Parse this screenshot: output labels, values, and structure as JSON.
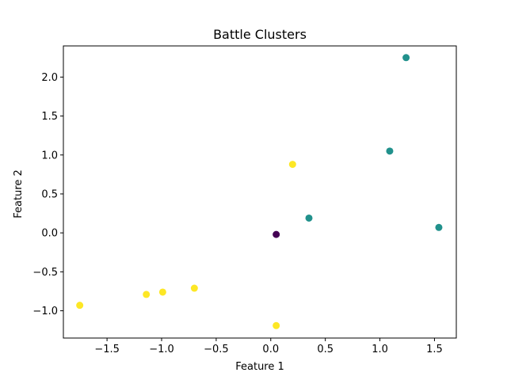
{
  "chart_data": {
    "type": "scatter",
    "title": "Battle Clusters",
    "xlabel": "Feature 1",
    "ylabel": "Feature 2",
    "xlim": [
      -1.9,
      1.7
    ],
    "ylim": [
      -1.35,
      2.4
    ],
    "xticks": [
      -1.5,
      -1.0,
      -0.5,
      0.0,
      0.5,
      1.0,
      1.5
    ],
    "xtick_labels": [
      "−1.5",
      "−1.0",
      "−0.5",
      "0.0",
      "0.5",
      "1.0",
      "1.5"
    ],
    "yticks": [
      -1.0,
      -0.5,
      0.0,
      0.5,
      1.0,
      1.5,
      2.0
    ],
    "ytick_labels": [
      "−1.0",
      "−0.5",
      "0.0",
      "0.5",
      "1.0",
      "1.5",
      "2.0"
    ],
    "grid": false,
    "series": [
      {
        "color": "#440154",
        "points": [
          [
            0.05,
            -0.02
          ]
        ]
      },
      {
        "color": "#21918c",
        "points": [
          [
            1.24,
            2.25
          ],
          [
            1.09,
            1.05
          ],
          [
            0.35,
            0.19
          ],
          [
            1.54,
            0.07
          ]
        ]
      },
      {
        "color": "#fde725",
        "points": [
          [
            0.2,
            0.88
          ],
          [
            -0.7,
            -0.71
          ],
          [
            -0.99,
            -0.76
          ],
          [
            -1.14,
            -0.79
          ],
          [
            -1.75,
            -0.93
          ],
          [
            0.05,
            -1.19
          ]
        ]
      }
    ]
  }
}
